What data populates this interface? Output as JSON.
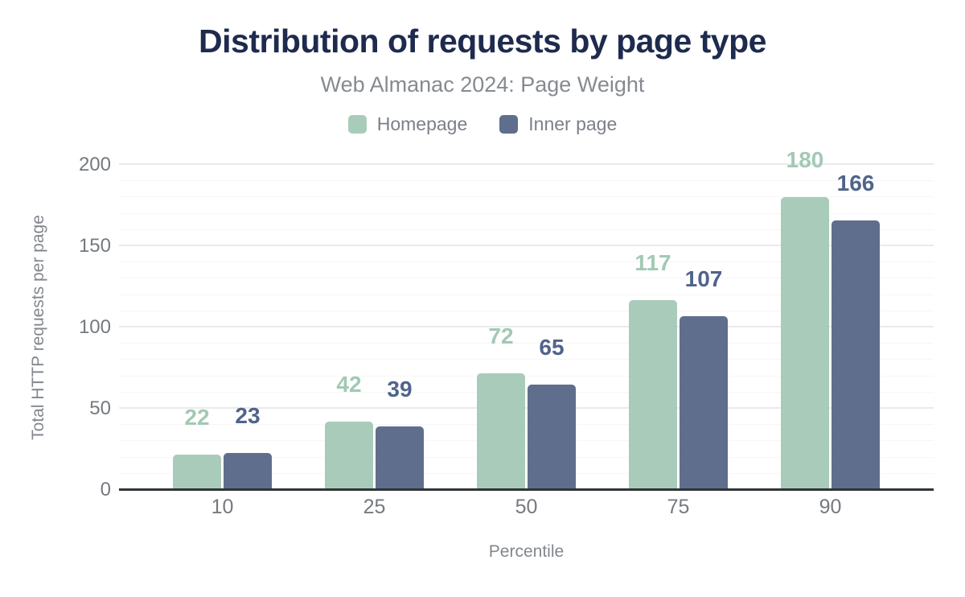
{
  "title": "Distribution of requests by page type",
  "subtitle": "Web Almanac 2024: Page Weight",
  "colors": {
    "title": "#1e2b4e",
    "subtitle": "#868a91",
    "legendtext": "#7b7f87",
    "ticktext": "#75797f",
    "axistitle": "#83878e",
    "gridmajor": "#eaeaea",
    "gridminor": "#f6f6f6",
    "axisline": "#2f3539"
  },
  "chart_data": {
    "type": "bar",
    "title": "Distribution of requests by page type",
    "subtitle": "Web Almanac 2024: Page Weight",
    "categories": [
      "10",
      "25",
      "50",
      "75",
      "90"
    ],
    "series": [
      {
        "name": "Homepage",
        "color": "#a9ccba",
        "label_color": "#a2c9b4",
        "values": [
          22,
          42,
          72,
          117,
          180
        ]
      },
      {
        "name": "Inner page",
        "color": "#5e6e8c",
        "label_color": "#50648a",
        "values": [
          23,
          39,
          65,
          107,
          166
        ]
      }
    ],
    "xlabel": "Percentile",
    "ylabel": "Total HTTP requests per page",
    "ylim": [
      0,
      200
    ],
    "yticks": [
      0,
      50,
      100,
      150,
      200
    ],
    "grid": {
      "major_interval": 50,
      "minor_interval": 10,
      "visible": true
    },
    "legend_position": "top",
    "data_labels": true
  }
}
